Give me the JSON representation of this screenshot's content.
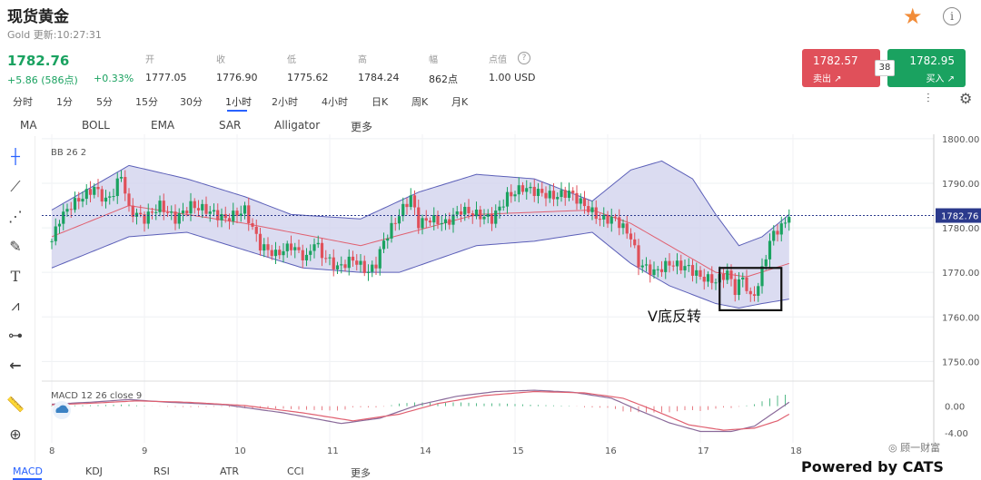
{
  "header": {
    "title": "现货黄金",
    "subtitle": "Gold 更新:10:27:31",
    "price": "1782.76",
    "change": "+5.86 (586点)",
    "change_pct": "+0.33%"
  },
  "stats": [
    {
      "label": "开",
      "value": "1777.05"
    },
    {
      "label": "收",
      "value": "1776.90"
    },
    {
      "label": "低",
      "value": "1775.62"
    },
    {
      "label": "高",
      "value": "1784.24"
    },
    {
      "label": "幅",
      "value": "862点"
    },
    {
      "label": "点值",
      "value": "1.00 USD"
    }
  ],
  "trade": {
    "sell_price": "1782.57",
    "sell_label": "卖出",
    "buy_price": "1782.95",
    "buy_label": "买入",
    "spread": "38"
  },
  "timeframes": [
    "分时",
    "1分",
    "5分",
    "15分",
    "30分",
    "1小时",
    "2小时",
    "4小时",
    "日K",
    "周K",
    "月K"
  ],
  "indicators": [
    "MA",
    "BOLL",
    "EMA",
    "SAR",
    "Alligator",
    "更多"
  ],
  "bottom_tabs": [
    "MACD",
    "KDJ",
    "RSI",
    "ATR",
    "CCI",
    "更多"
  ],
  "tools": [
    "crosshair-icon",
    "line-icon",
    "fib-icon",
    "brush-icon",
    "text-icon",
    "pattern-icon",
    "measure-icon",
    "back-arrow-icon",
    "ruler-icon",
    "zoom-icon"
  ],
  "colors": {
    "up": "#1aa260",
    "down": "#e0505a",
    "band_fill": "#cfd0ec",
    "band_line": "#5b5fb8",
    "mid_line": "#e06070",
    "macd_line": "#8a6a9a",
    "signal_line": "#e06070"
  },
  "chart_data": [
    {
      "type": "candlestick",
      "indicator_label": "BB 26 2",
      "annotation": "V底反转",
      "current_price_label": "1782.76",
      "x_tick_labels": [
        "8",
        "9",
        "10",
        "11",
        "14",
        "15",
        "16",
        "17",
        "18"
      ],
      "y_tick_labels": [
        "1800.00",
        "1790.00",
        "1780.00",
        "1770.00",
        "1760.00",
        "1750.00"
      ],
      "ylim": [
        1746,
        1801
      ],
      "anchor_closes": [
        [
          0,
          1777
        ],
        [
          2,
          1782
        ],
        [
          5,
          1785
        ],
        [
          8,
          1787
        ],
        [
          11,
          1789
        ],
        [
          14,
          1786
        ],
        [
          16,
          1788
        ],
        [
          18,
          1792
        ],
        [
          20,
          1784
        ],
        [
          24,
          1782
        ],
        [
          28,
          1785
        ],
        [
          32,
          1782
        ],
        [
          36,
          1785
        ],
        [
          40,
          1784
        ],
        [
          45,
          1782
        ],
        [
          50,
          1784
        ],
        [
          54,
          1776
        ],
        [
          58,
          1774
        ],
        [
          62,
          1776
        ],
        [
          66,
          1773
        ],
        [
          68,
          1777
        ],
        [
          70,
          1774
        ],
        [
          74,
          1771
        ],
        [
          78,
          1773
        ],
        [
          82,
          1770
        ],
        [
          84,
          1772
        ],
        [
          86,
          1777
        ],
        [
          90,
          1783
        ],
        [
          93,
          1787
        ],
        [
          95,
          1781
        ],
        [
          98,
          1782
        ],
        [
          102,
          1781
        ],
        [
          106,
          1784
        ],
        [
          110,
          1783
        ],
        [
          114,
          1782
        ],
        [
          118,
          1787
        ],
        [
          122,
          1789
        ],
        [
          126,
          1788
        ],
        [
          130,
          1787
        ],
        [
          134,
          1788
        ],
        [
          138,
          1785
        ],
        [
          142,
          1782
        ],
        [
          146,
          1782
        ],
        [
          150,
          1778
        ],
        [
          152,
          1772
        ],
        [
          156,
          1770
        ],
        [
          160,
          1772
        ],
        [
          165,
          1771
        ],
        [
          168,
          1769
        ],
        [
          172,
          1768
        ],
        [
          175,
          1770
        ],
        [
          177,
          1766
        ],
        [
          179,
          1769
        ],
        [
          181,
          1764
        ],
        [
          183,
          1767
        ],
        [
          185,
          1774
        ],
        [
          187,
          1779
        ],
        [
          189,
          1780
        ],
        [
          191,
          1783
        ]
      ],
      "bollinger": {
        "upper": [
          [
            0,
            1784
          ],
          [
            20,
            1794
          ],
          [
            35,
            1791
          ],
          [
            50,
            1787
          ],
          [
            62,
            1783
          ],
          [
            80,
            1782
          ],
          [
            95,
            1788
          ],
          [
            110,
            1792
          ],
          [
            125,
            1791
          ],
          [
            140,
            1786
          ],
          [
            150,
            1793
          ],
          [
            158,
            1795
          ],
          [
            166,
            1791
          ],
          [
            172,
            1783
          ],
          [
            178,
            1776
          ],
          [
            184,
            1778
          ],
          [
            191,
            1783
          ]
        ],
        "middle": [
          [
            0,
            1778
          ],
          [
            20,
            1785
          ],
          [
            50,
            1781
          ],
          [
            80,
            1776
          ],
          [
            110,
            1783
          ],
          [
            140,
            1784
          ],
          [
            150,
            1781
          ],
          [
            160,
            1776
          ],
          [
            172,
            1770
          ],
          [
            180,
            1769
          ],
          [
            191,
            1772
          ]
        ],
        "lower": [
          [
            0,
            1771
          ],
          [
            20,
            1778
          ],
          [
            35,
            1779
          ],
          [
            50,
            1775
          ],
          [
            65,
            1771
          ],
          [
            80,
            1770
          ],
          [
            90,
            1770
          ],
          [
            110,
            1776
          ],
          [
            125,
            1777
          ],
          [
            140,
            1779
          ],
          [
            150,
            1772
          ],
          [
            160,
            1767
          ],
          [
            172,
            1763
          ],
          [
            178,
            1762
          ],
          [
            184,
            1763
          ],
          [
            191,
            1764
          ]
        ]
      },
      "highlight_box": {
        "x_start": 173,
        "x_end": 189,
        "y_low": 1761.5,
        "y_high": 1771
      }
    },
    {
      "type": "macd",
      "label": "MACD 12 26 close 9",
      "y_tick_labels": [
        "0.00",
        "-4.00"
      ],
      "ylim": [
        -5.5,
        3.5
      ],
      "macd_line": [
        [
          0,
          0.3
        ],
        [
          10,
          0.6
        ],
        [
          20,
          1.0
        ],
        [
          30,
          0.6
        ],
        [
          45,
          0.2
        ],
        [
          60,
          -1.0
        ],
        [
          75,
          -2.6
        ],
        [
          85,
          -1.8
        ],
        [
          95,
          0.2
        ],
        [
          105,
          1.5
        ],
        [
          115,
          2.2
        ],
        [
          125,
          2.4
        ],
        [
          135,
          2.1
        ],
        [
          145,
          1.2
        ],
        [
          152,
          -0.6
        ],
        [
          160,
          -2.5
        ],
        [
          168,
          -3.8
        ],
        [
          176,
          -3.8
        ],
        [
          182,
          -3.0
        ],
        [
          187,
          -1.0
        ],
        [
          191,
          0.6
        ]
      ],
      "signal_line": [
        [
          0,
          0.2
        ],
        [
          12,
          0.5
        ],
        [
          22,
          0.8
        ],
        [
          35,
          0.6
        ],
        [
          50,
          0.1
        ],
        [
          65,
          -1.0
        ],
        [
          78,
          -2.2
        ],
        [
          90,
          -1.2
        ],
        [
          100,
          0.4
        ],
        [
          112,
          1.6
        ],
        [
          125,
          2.2
        ],
        [
          138,
          2.0
        ],
        [
          148,
          1.2
        ],
        [
          156,
          -0.6
        ],
        [
          165,
          -2.8
        ],
        [
          174,
          -3.6
        ],
        [
          182,
          -3.3
        ],
        [
          188,
          -2.2
        ],
        [
          191,
          -1.2
        ]
      ]
    }
  ]
}
